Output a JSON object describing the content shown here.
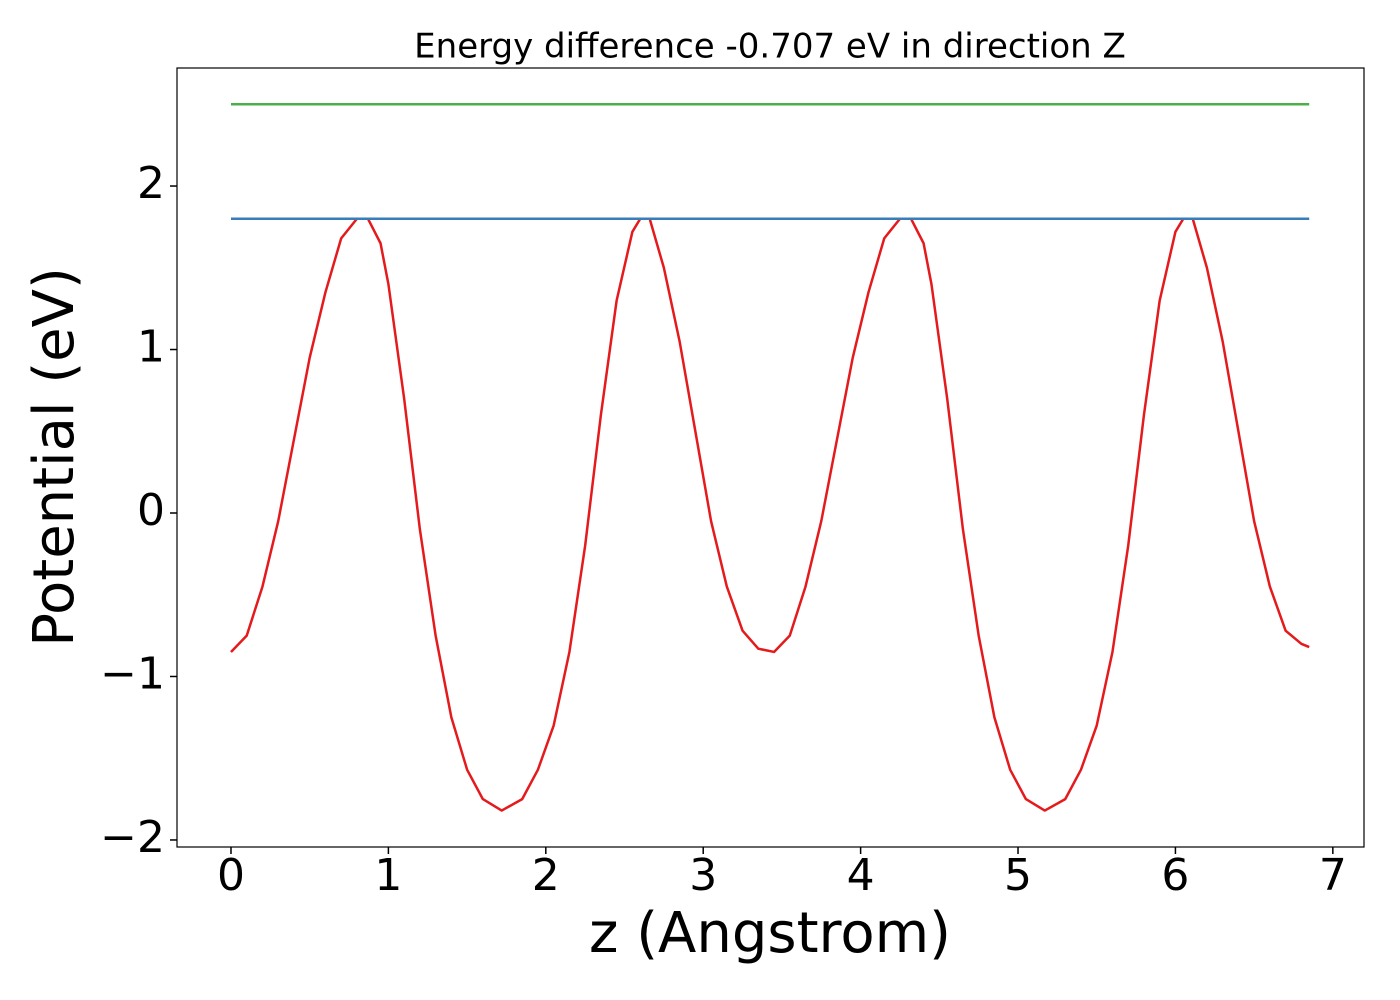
{
  "chart_data": {
    "type": "line",
    "title": "Energy difference -0.707 eV in direction Z",
    "xlabel": "z (Angstrom)",
    "ylabel": "Potential (eV)",
    "xlim": [
      -0.343,
      7.198
    ],
    "ylim": [
      -2.043,
      2.722
    ],
    "xticks": [
      0,
      1,
      2,
      3,
      4,
      5,
      6,
      7
    ],
    "yticks": [
      {
        "value": -2,
        "label": "−2"
      },
      {
        "value": -1,
        "label": "−1"
      },
      0,
      1,
      2
    ],
    "grid": false,
    "series": [
      {
        "color": "#e41a1c",
        "x": [
          0,
          0.1,
          0.2,
          0.3,
          0.4,
          0.5,
          0.6,
          0.7,
          0.8,
          0.87,
          0.95,
          1.0,
          1.1,
          1.2,
          1.3,
          1.4,
          1.5,
          1.6,
          1.72,
          1.85,
          1.95,
          2.05,
          2.15,
          2.25,
          2.35,
          2.45,
          2.55,
          2.6,
          2.66,
          2.75,
          2.85,
          2.95,
          3.05,
          3.15,
          3.25,
          3.35,
          3.45,
          3.55,
          3.65,
          3.75,
          3.85,
          3.95,
          4.05,
          4.15,
          4.25,
          4.32,
          4.4,
          4.45,
          4.55,
          4.65,
          4.75,
          4.85,
          4.95,
          5.05,
          5.17,
          5.3,
          5.4,
          5.5,
          5.6,
          5.7,
          5.8,
          5.9,
          6.0,
          6.05,
          6.11,
          6.2,
          6.3,
          6.4,
          6.5,
          6.6,
          6.7,
          6.8,
          6.85
        ],
        "values": [
          -0.85,
          -0.75,
          -0.45,
          -0.05,
          0.45,
          0.95,
          1.35,
          1.68,
          1.8,
          1.8,
          1.65,
          1.4,
          0.7,
          -0.1,
          -0.75,
          -1.25,
          -1.57,
          -1.75,
          -1.82,
          -1.75,
          -1.57,
          -1.3,
          -0.85,
          -0.2,
          0.6,
          1.3,
          1.72,
          1.8,
          1.8,
          1.5,
          1.05,
          0.5,
          -0.05,
          -0.45,
          -0.72,
          -0.83,
          -0.85,
          -0.75,
          -0.45,
          -0.05,
          0.45,
          0.95,
          1.35,
          1.68,
          1.8,
          1.8,
          1.65,
          1.4,
          0.7,
          -0.1,
          -0.75,
          -1.25,
          -1.57,
          -1.75,
          -1.82,
          -1.75,
          -1.57,
          -1.3,
          -0.85,
          -0.2,
          0.6,
          1.3,
          1.72,
          1.8,
          1.8,
          1.5,
          1.05,
          0.5,
          -0.05,
          -0.45,
          -0.72,
          -0.8,
          -0.82
        ]
      },
      {
        "color": "#377eb8",
        "x": [
          0,
          6.85
        ],
        "values": [
          1.8,
          1.8
        ]
      },
      {
        "color": "#4daf4a",
        "x": [
          0,
          6.85
        ],
        "values": [
          2.5,
          2.5
        ]
      }
    ]
  }
}
